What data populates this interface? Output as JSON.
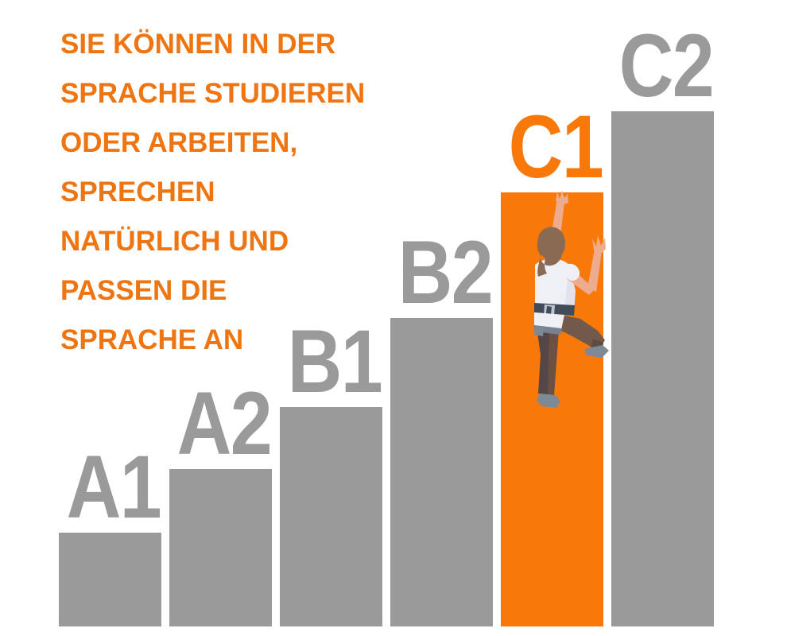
{
  "headline": {
    "text": "SIE KÖNNEN IN DER\nSPRACHE STUDIEREN\nODER ARBEITEN,\nSPRECHEN\nNATÜRLICH UND\nPASSEN DIE\nSPRACHE AN",
    "color": "#EE7511"
  },
  "chart_data": {
    "type": "bar",
    "title": "CEFR language levels ascending staircase",
    "categories": [
      "A1",
      "A2",
      "B1",
      "B2",
      "C1",
      "C2"
    ],
    "values": [
      118,
      198,
      276,
      388,
      546,
      648
    ],
    "unit": "bar-height-px",
    "value_scale": "ascending proficiency steps, C2 highest",
    "highlighted_category": "C1",
    "bar_color": "#9A9A9A",
    "highlight_color": "#F8790A",
    "label_color": "#9A9A9A",
    "highlight_label_color": "#F8790A",
    "xlabel": "",
    "ylabel": "",
    "legend": "none",
    "axes": "none",
    "grid": false
  },
  "illustration": {
    "name": "person-climbing-c1-bar",
    "colors": {
      "skin": "#EDAC90",
      "hair": "#8A6A52",
      "shirt": "#EFEFF6",
      "shirt_shadow": "#DDDDE9",
      "belt": "#414B59",
      "buckle": "#BCC4CF",
      "pants_dark": "#554747",
      "pants_brown": "#6B5144",
      "thigh_brown": "#72594B",
      "shin": "#5E4C42",
      "shoes": "#7D8A96",
      "harness": "#77818F"
    }
  }
}
